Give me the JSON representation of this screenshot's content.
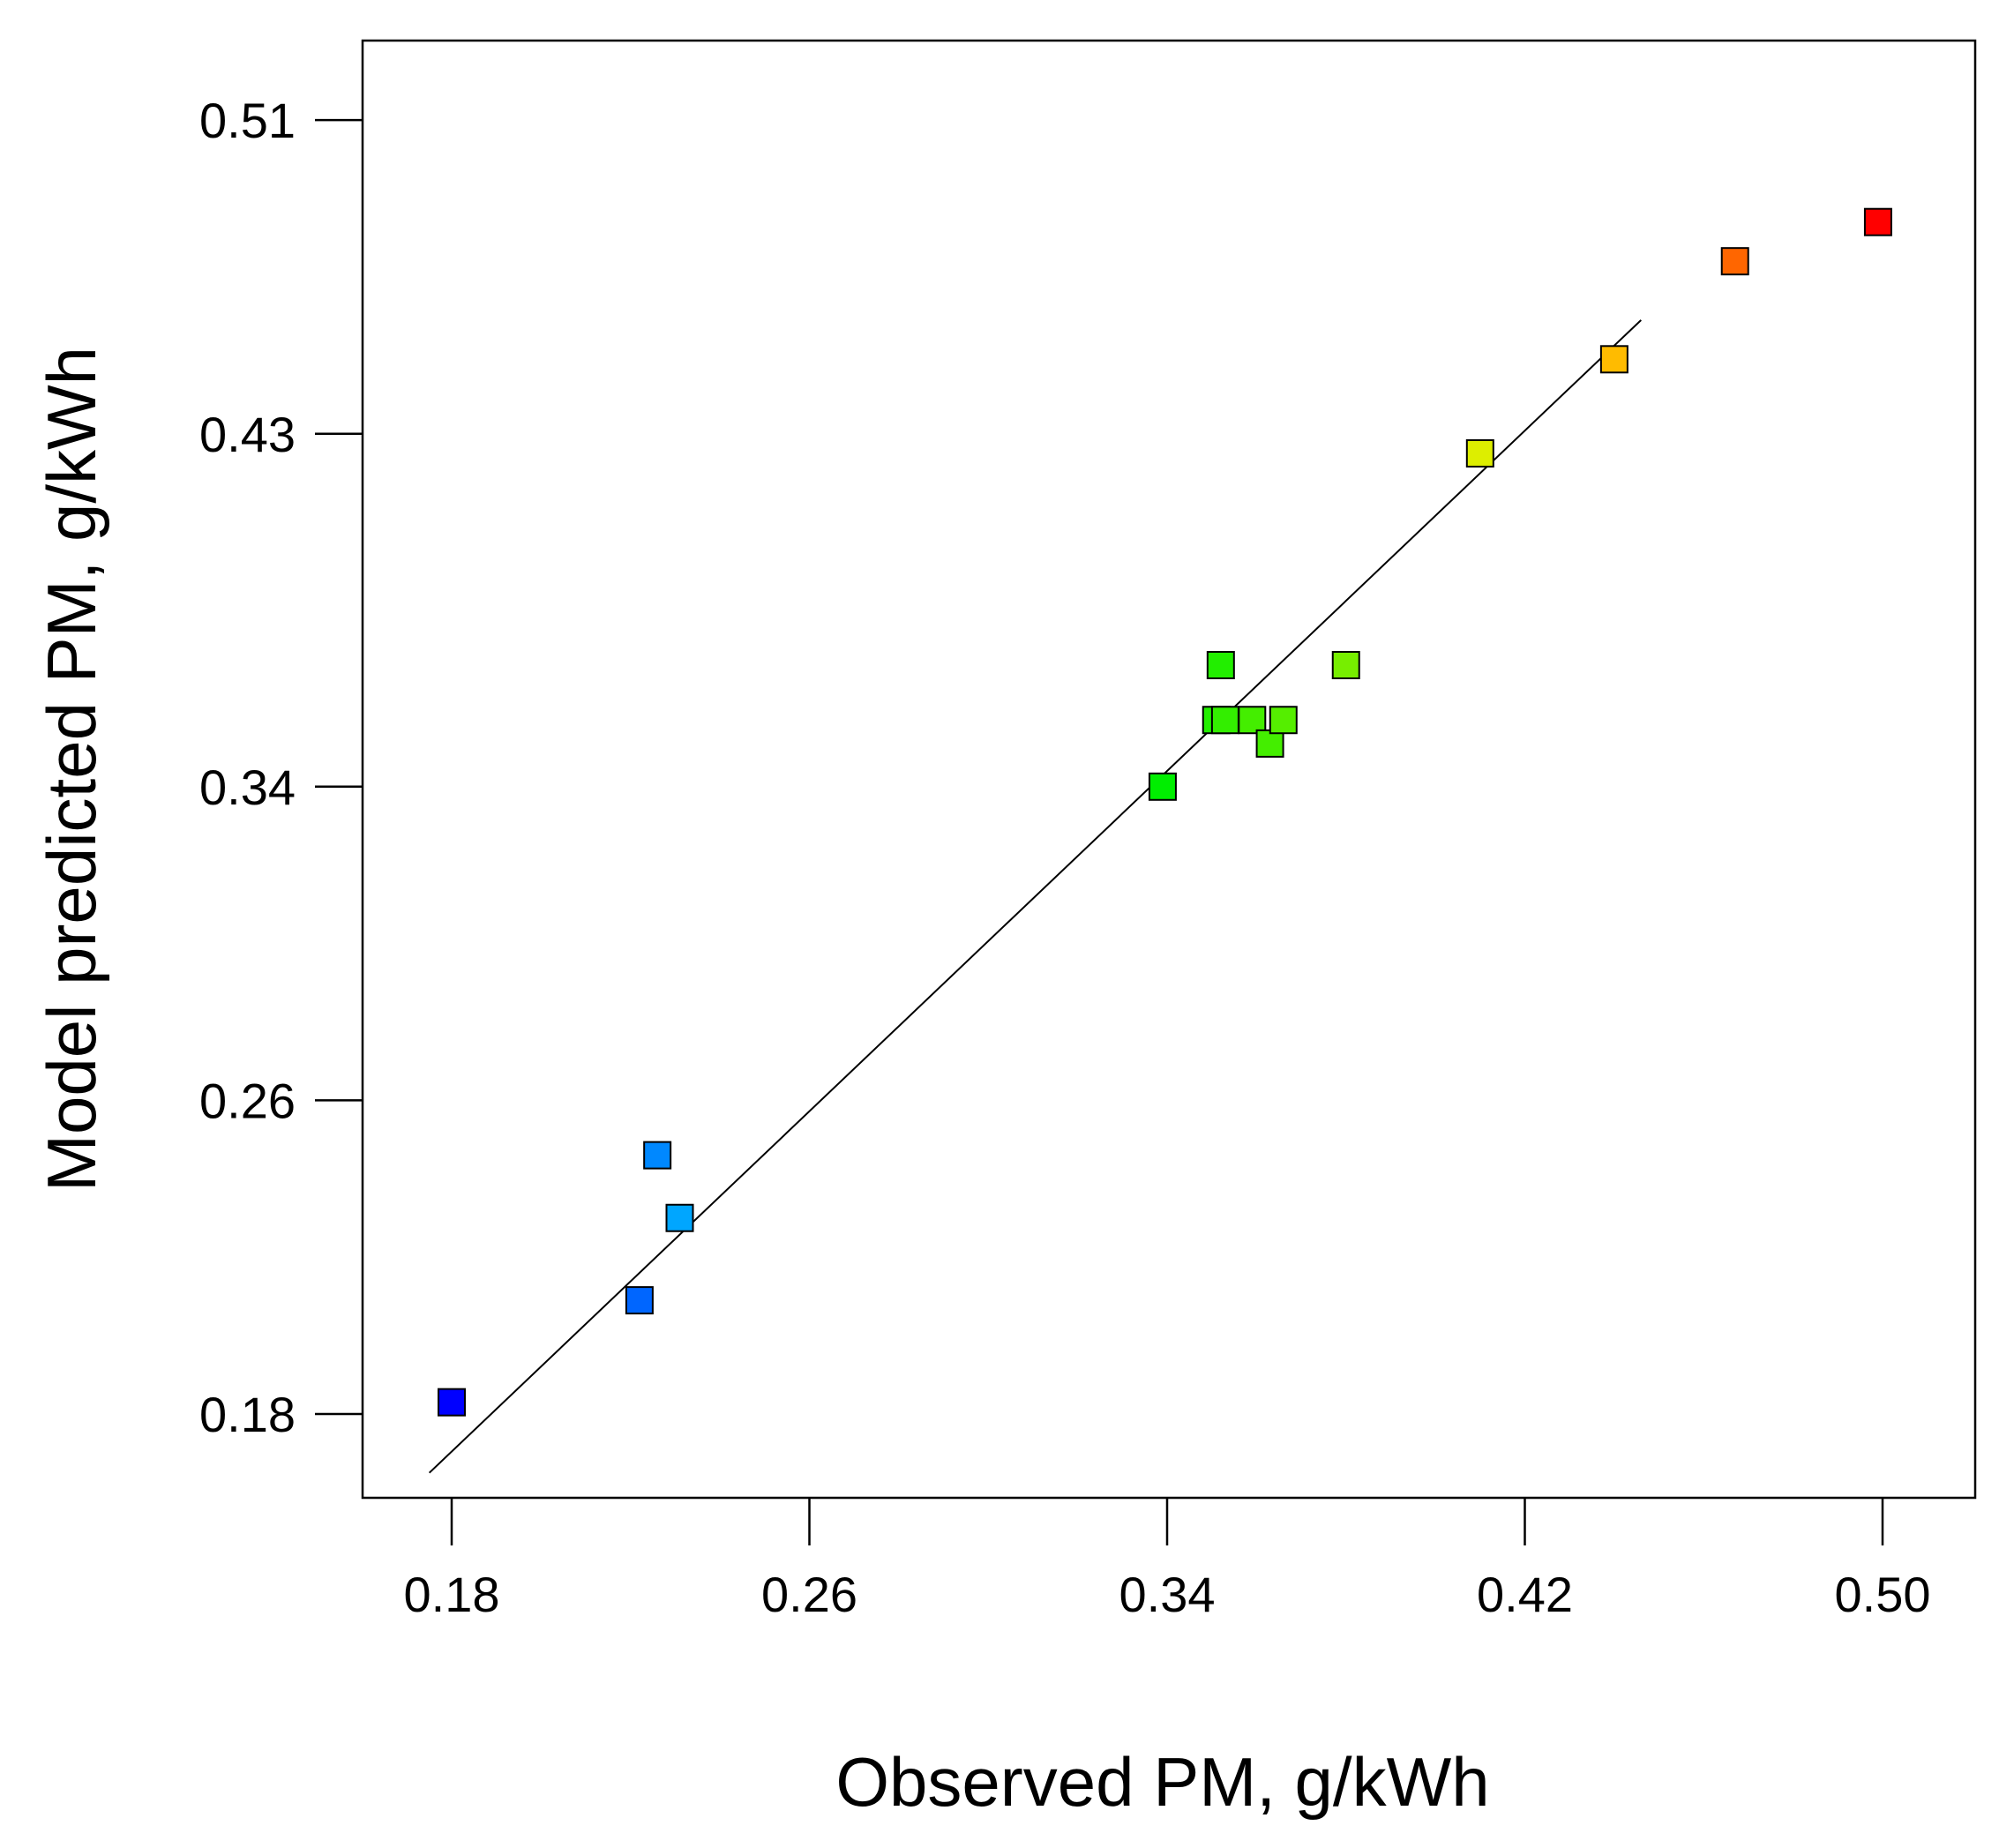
{
  "chart_data": {
    "type": "scatter",
    "title": "",
    "xlabel": "Observed PM, g/kWh",
    "ylabel": "Model predicted PM, g/kWh",
    "xlim": [
      0.16,
      0.52
    ],
    "ylim": [
      0.16,
      0.53
    ],
    "xticks": [
      "0.18",
      "0.26",
      "0.34",
      "0.42",
      "0.50"
    ],
    "yticks": [
      "0.18",
      "0.26",
      "0.34",
      "0.43",
      "0.51"
    ],
    "xtick_values": [
      0.18,
      0.26,
      0.34,
      0.42,
      0.5
    ],
    "ytick_values": [
      0.18,
      0.26,
      0.34,
      0.43,
      0.51
    ],
    "fit_line": {
      "x": [
        0.175,
        0.446
      ],
      "y": [
        0.165,
        0.459
      ]
    },
    "points": [
      {
        "x": 0.18,
        "y": 0.183,
        "color": "#0000ff"
      },
      {
        "x": 0.222,
        "y": 0.209,
        "color": "#0066ff"
      },
      {
        "x": 0.226,
        "y": 0.246,
        "color": "#0088ff"
      },
      {
        "x": 0.231,
        "y": 0.23,
        "color": "#00a6ff"
      },
      {
        "x": 0.339,
        "y": 0.34,
        "color": "#00ee00"
      },
      {
        "x": 0.352,
        "y": 0.371,
        "color": "#22ee00"
      },
      {
        "x": 0.351,
        "y": 0.357,
        "color": "#22ee00"
      },
      {
        "x": 0.353,
        "y": 0.357,
        "color": "#33ee00"
      },
      {
        "x": 0.359,
        "y": 0.357,
        "color": "#44ee00"
      },
      {
        "x": 0.363,
        "y": 0.351,
        "color": "#44ee00"
      },
      {
        "x": 0.366,
        "y": 0.357,
        "color": "#55ee00"
      },
      {
        "x": 0.38,
        "y": 0.371,
        "color": "#77ee00"
      },
      {
        "x": 0.41,
        "y": 0.425,
        "color": "#ddee00"
      },
      {
        "x": 0.44,
        "y": 0.449,
        "color": "#ffbb00"
      },
      {
        "x": 0.467,
        "y": 0.474,
        "color": "#ff6600"
      },
      {
        "x": 0.499,
        "y": 0.484,
        "color": "#ff0000"
      }
    ]
  }
}
